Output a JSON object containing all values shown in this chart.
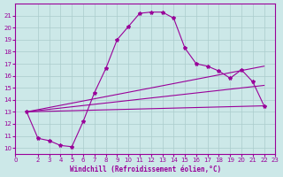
{
  "background_color": "#cce8e8",
  "grid_color": "#aacccc",
  "line_color": "#990099",
  "marker_color": "#990099",
  "xlabel": "Windchill (Refroidissement éolien,°C)",
  "xlabel_color": "#990099",
  "tick_color": "#990099",
  "xlim": [
    0,
    23
  ],
  "ylim": [
    9.5,
    22
  ],
  "yticks": [
    10,
    11,
    12,
    13,
    14,
    15,
    16,
    17,
    18,
    19,
    20,
    21
  ],
  "xticks": [
    0,
    2,
    3,
    4,
    5,
    6,
    7,
    8,
    9,
    10,
    11,
    12,
    13,
    14,
    15,
    16,
    17,
    18,
    19,
    20,
    21,
    22,
    23
  ],
  "curve1_x": [
    1,
    2,
    3,
    4,
    5,
    6,
    7,
    8,
    9,
    10,
    11,
    12,
    13,
    14,
    15,
    16,
    17,
    18,
    19,
    20,
    21,
    22
  ],
  "curve1_y": [
    13.0,
    10.8,
    10.6,
    10.2,
    10.1,
    12.2,
    14.6,
    16.6,
    19.0,
    20.1,
    21.2,
    21.3,
    21.3,
    20.8,
    18.3,
    17.0,
    16.8,
    16.4,
    15.8,
    16.5,
    15.5,
    13.5
  ],
  "curve2_x": [
    1,
    22
  ],
  "curve2_y": [
    13.0,
    13.5
  ],
  "curve3_x": [
    1,
    22
  ],
  "curve3_y": [
    13.0,
    16.8
  ],
  "curve4_x": [
    1,
    22
  ],
  "curve4_y": [
    13.0,
    15.2
  ]
}
